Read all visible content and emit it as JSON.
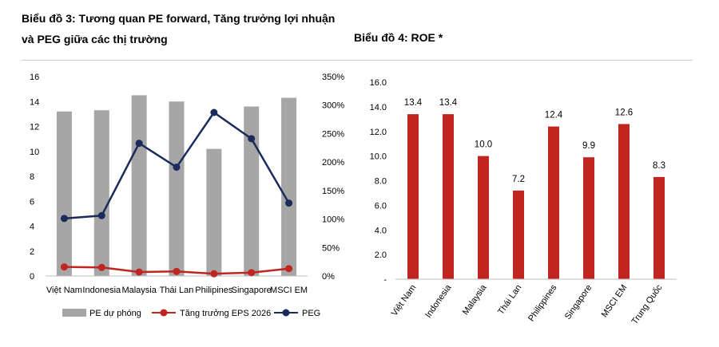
{
  "chart_data": [
    {
      "type": "bar",
      "title": "Biểu đồ 3: Tương quan PE forward, Tăng trưởng lợi nhuận và PEG giữa các thị trường",
      "categories": [
        "Việt Nam",
        "Indonesia",
        "Malaysia",
        "Thái Lan",
        "Philipines",
        "Singapore",
        "MSCI EM"
      ],
      "ylim": [
        0,
        16
      ],
      "yticks": [
        "0",
        "2",
        "4",
        "6",
        "8",
        "10",
        "12",
        "14",
        "16"
      ],
      "y2lim": [
        0,
        3.5
      ],
      "y2ticks": [
        "0%",
        "50%",
        "100%",
        "150%",
        "200%",
        "250%",
        "300%",
        "350%"
      ],
      "legend_position": "bottom",
      "series": [
        {
          "name": "PE dự phóng",
          "type": "bar",
          "axis": "left",
          "color": "#a6a6a6",
          "values": [
            13.2,
            13.3,
            14.5,
            14.0,
            10.2,
            13.6,
            14.3
          ]
        },
        {
          "name": "Tăng trưởng EPS 2026",
          "type": "line",
          "axis": "right",
          "color": "#c0251f",
          "values": [
            0.16,
            0.15,
            0.07,
            0.08,
            0.04,
            0.06,
            0.13
          ]
        },
        {
          "name": "PEG",
          "type": "line",
          "axis": "right",
          "color": "#1a2b5c",
          "values": [
            1.01,
            1.06,
            2.33,
            1.91,
            2.87,
            2.41,
            1.28
          ]
        }
      ]
    },
    {
      "type": "bar",
      "title": "Biểu đồ 4: ROE *",
      "categories": [
        "Việt Nam",
        "Indonesia",
        "Malaysia",
        "Thái Lan",
        "Philippines",
        "Singapore",
        "MSCI EM",
        "Trung Quốc"
      ],
      "ylim": [
        0,
        16
      ],
      "yticks": [
        "-",
        "2.0",
        "4.0",
        "6.0",
        "8.0",
        "10.0",
        "12.0",
        "14.0",
        "16.0"
      ],
      "color": "#c0251f",
      "values": [
        13.4,
        13.4,
        10.0,
        7.2,
        12.4,
        9.9,
        12.6,
        8.3
      ],
      "data_labels": [
        "13.4",
        "13.4",
        "10.0",
        "7.2",
        "12.4",
        "9.9",
        "12.6",
        "8.3"
      ]
    }
  ]
}
